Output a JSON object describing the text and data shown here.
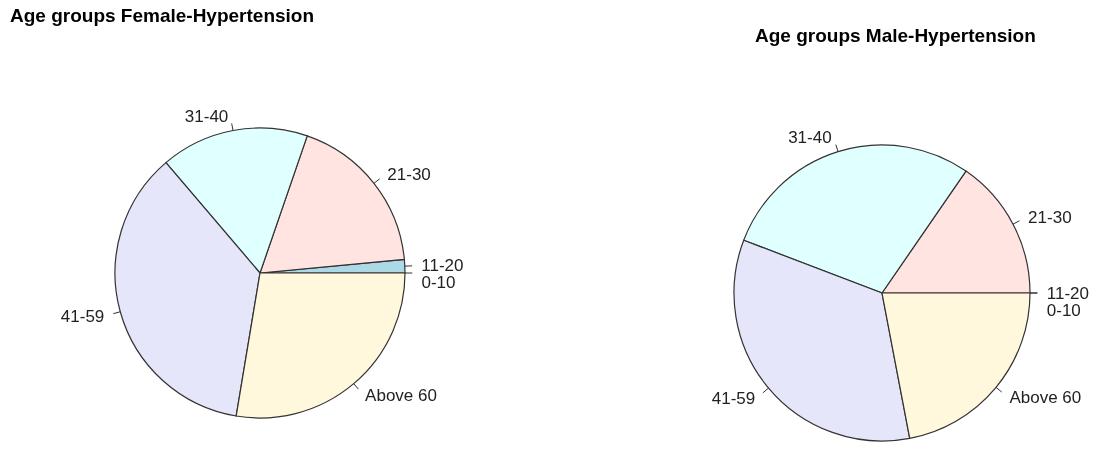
{
  "chart_data": [
    {
      "type": "pie",
      "title": "Age groups Female-Hypertension",
      "categories": [
        "0-10",
        "11-20",
        "21-30",
        "31-40",
        "41-59",
        "Above 60"
      ],
      "values": [
        null,
        1.5,
        18.2,
        16.5,
        36.1,
        27.6
      ],
      "colors": [
        "#ffffff",
        "#add8e6",
        "#ffe4e1",
        "#e0ffff",
        "#e6e6fa",
        "#fff8dc"
      ]
    },
    {
      "type": "pie",
      "title": "Age groups Male-Hypertension",
      "categories": [
        "0-10",
        "11-20",
        "21-30",
        "31-40",
        "41-59",
        "Above 60"
      ],
      "values": [
        0,
        0,
        15.4,
        28.8,
        33.8,
        22.0
      ],
      "colors": [
        "#ffffff",
        "#add8e6",
        "#ffe4e1",
        "#e0ffff",
        "#e6e6fa",
        "#fff8dc"
      ]
    }
  ]
}
